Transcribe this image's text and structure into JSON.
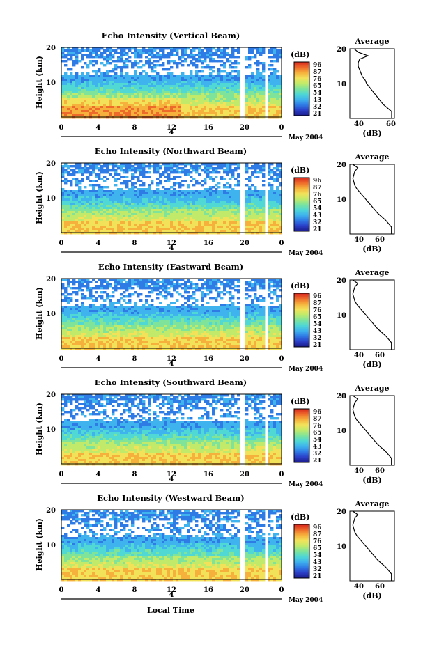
{
  "chart_data": [
    {
      "type": "heatmap",
      "title": "Echo Intensity (Vertical Beam)",
      "ylabel": "Height (km)",
      "yticks": [
        "20",
        "10"
      ],
      "xticks": [
        "0",
        "4",
        "8",
        "12",
        "16",
        "20",
        "0"
      ],
      "date_tick": "4",
      "date_label": "May 2004",
      "colorbar": {
        "unit": "(dB)",
        "labels": [
          "96",
          "87",
          "76",
          "65",
          "54",
          "43",
          "32",
          "21"
        ]
      },
      "profile": {
        "title": "Average",
        "xlabel": "(dB)",
        "xticks": [
          "40",
          "60"
        ],
        "yticks": [
          "20",
          "10"
        ],
        "height": [
          1,
          2,
          3,
          4,
          5,
          6,
          7,
          8,
          9,
          10,
          11,
          12,
          13,
          14,
          15,
          16,
          17,
          18,
          19,
          20
        ],
        "db": [
          60,
          60,
          57,
          54,
          52,
          50,
          48,
          46,
          44,
          42,
          41,
          39,
          38,
          37,
          36,
          36,
          37,
          43,
          36,
          33
        ]
      }
    },
    {
      "type": "heatmap",
      "title": "Echo Intensity (Northward Beam)",
      "ylabel": "Height (km)",
      "yticks": [
        "20",
        "10"
      ],
      "xticks": [
        "0",
        "4",
        "8",
        "12",
        "16",
        "20",
        "0"
      ],
      "date_tick": "4",
      "date_label": "May 2004",
      "colorbar": {
        "unit": "(dB)",
        "labels": [
          "96",
          "87",
          "76",
          "65",
          "54",
          "43",
          "32",
          "21"
        ]
      },
      "profile": {
        "title": "Average",
        "xlabel": "(dB)",
        "xticks": [
          "40",
          "60"
        ],
        "yticks": [
          "20",
          "10"
        ],
        "height": [
          1,
          2,
          3,
          4,
          5,
          6,
          7,
          8,
          9,
          10,
          11,
          12,
          13,
          14,
          15,
          16,
          17,
          18,
          19,
          20
        ],
        "db": [
          72,
          72,
          69,
          66,
          62,
          58,
          55,
          52,
          49,
          46,
          43,
          40,
          37,
          35,
          34,
          33,
          34,
          35,
          38,
          33
        ]
      }
    },
    {
      "type": "heatmap",
      "title": "Echo Intensity (Eastward Beam)",
      "ylabel": "Height (km)",
      "yticks": [
        "20",
        "10"
      ],
      "xticks": [
        "0",
        "4",
        "8",
        "12",
        "16",
        "20",
        "0"
      ],
      "date_tick": "4",
      "date_label": "May 2004",
      "colorbar": {
        "unit": "(dB)",
        "labels": [
          "96",
          "87",
          "76",
          "65",
          "54",
          "43",
          "32",
          "21"
        ]
      },
      "profile": {
        "title": "Average",
        "xlabel": "(dB)",
        "xticks": [
          "40",
          "60"
        ],
        "yticks": [
          "20",
          "10"
        ],
        "height": [
          1,
          2,
          3,
          4,
          5,
          6,
          7,
          8,
          9,
          10,
          11,
          12,
          13,
          14,
          15,
          16,
          17,
          18,
          19,
          20
        ],
        "db": [
          72,
          72,
          69,
          66,
          62,
          58,
          55,
          52,
          49,
          46,
          43,
          40,
          37,
          35,
          34,
          33,
          34,
          35,
          38,
          33
        ]
      }
    },
    {
      "type": "heatmap",
      "title": "Echo Intensity (Southward Beam)",
      "ylabel": "Height (km)",
      "yticks": [
        "20",
        "10"
      ],
      "xticks": [
        "0",
        "4",
        "8",
        "12",
        "16",
        "20",
        "0"
      ],
      "date_tick": "4",
      "date_label": "May 2004",
      "colorbar": {
        "unit": "(dB)",
        "labels": [
          "96",
          "87",
          "76",
          "65",
          "54",
          "43",
          "32",
          "21"
        ]
      },
      "profile": {
        "title": "Average",
        "xlabel": "(dB)",
        "xticks": [
          "40",
          "60"
        ],
        "yticks": [
          "20",
          "10"
        ],
        "height": [
          1,
          2,
          3,
          4,
          5,
          6,
          7,
          8,
          9,
          10,
          11,
          12,
          13,
          14,
          15,
          16,
          17,
          18,
          19,
          20
        ],
        "db": [
          72,
          72,
          69,
          66,
          62,
          58,
          55,
          52,
          49,
          46,
          43,
          40,
          37,
          35,
          34,
          33,
          34,
          35,
          38,
          33
        ]
      }
    },
    {
      "type": "heatmap",
      "title": "Echo Intensity (Westward Beam)",
      "ylabel": "Height (km)",
      "yticks": [
        "20",
        "10"
      ],
      "xticks": [
        "0",
        "4",
        "8",
        "12",
        "16",
        "20",
        "0"
      ],
      "date_tick": "4",
      "date_label": "May 2004",
      "xlabel": "Local Time",
      "colorbar": {
        "unit": "(dB)",
        "labels": [
          "96",
          "87",
          "76",
          "65",
          "54",
          "43",
          "32",
          "21"
        ]
      },
      "profile": {
        "title": "Average",
        "xlabel": "(dB)",
        "xticks": [
          "40",
          "60"
        ],
        "yticks": [
          "20",
          "10"
        ],
        "height": [
          1,
          2,
          3,
          4,
          5,
          6,
          7,
          8,
          9,
          10,
          11,
          12,
          13,
          14,
          15,
          16,
          17,
          18,
          19,
          20
        ],
        "db": [
          72,
          72,
          69,
          66,
          62,
          58,
          55,
          52,
          49,
          46,
          43,
          40,
          37,
          35,
          34,
          33,
          34,
          35,
          38,
          33
        ]
      }
    }
  ],
  "colors": {
    "scale": [
      "#1c1a8a",
      "#2a3fc8",
      "#2f7be6",
      "#3fb3ee",
      "#4fd8d4",
      "#7fe49a",
      "#c2ea6a",
      "#f2e25a",
      "#f6b03c",
      "#ee6a2a",
      "#d9261e"
    ]
  }
}
